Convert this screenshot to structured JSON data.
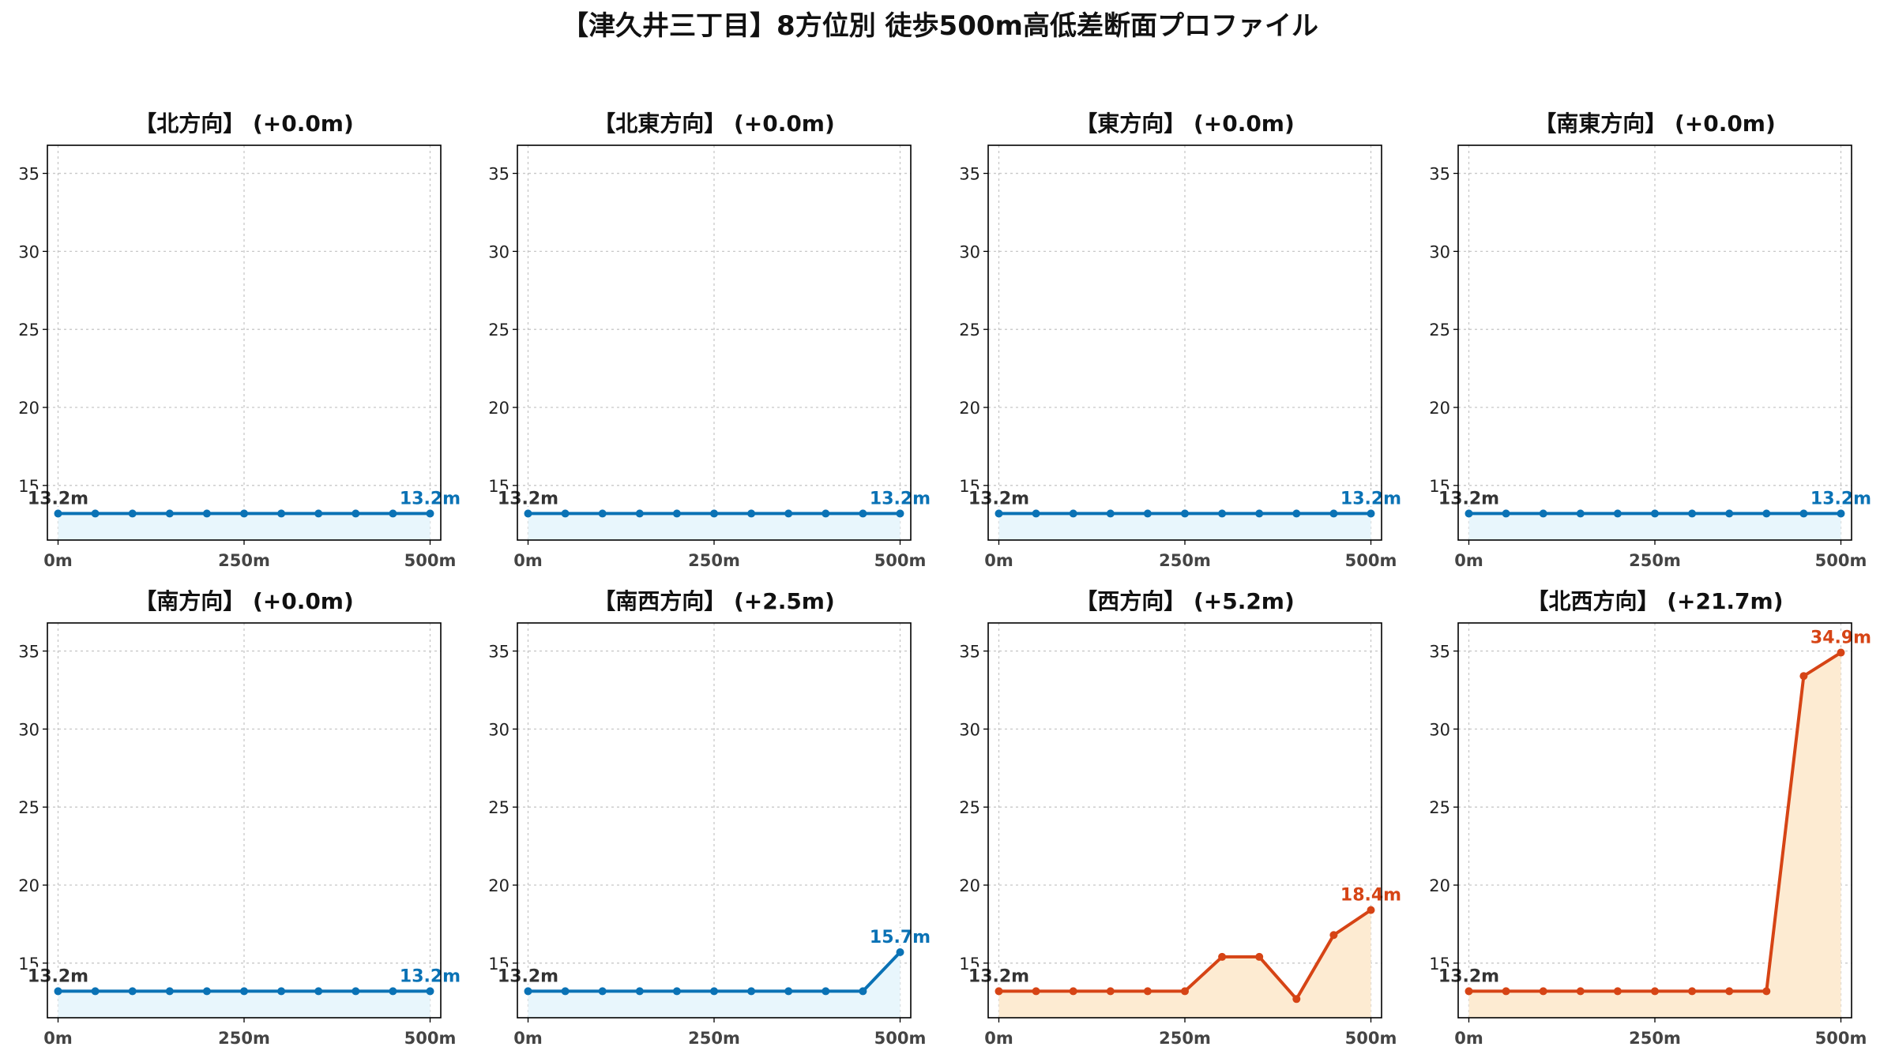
{
  "title": "【津久井三丁目】8方位別 徒歩500m高低差断面プロファイル",
  "colors": {
    "flat_line": "#0a72b5",
    "flat_fill": "#e8f6fc",
    "up_line": "#d64415",
    "up_fill": "#fdebd2"
  },
  "chart_data": [
    {
      "type": "area",
      "title": "【北方向】 (+0.0m)",
      "color_scheme": "flat",
      "x": [
        0,
        50,
        100,
        150,
        200,
        250,
        300,
        350,
        400,
        450,
        500
      ],
      "y": [
        13.2,
        13.2,
        13.2,
        13.2,
        13.2,
        13.2,
        13.2,
        13.2,
        13.2,
        13.2,
        13.2
      ],
      "start_label": "13.2m",
      "end_label": "13.2m",
      "ylim": [
        11.5,
        36.8
      ],
      "yticks": [
        "15",
        "20",
        "25",
        "30",
        "35"
      ],
      "xticks": [
        "0m",
        "250m",
        "500m"
      ],
      "grid": true
    },
    {
      "type": "area",
      "title": "【北東方向】 (+0.0m)",
      "color_scheme": "flat",
      "x": [
        0,
        50,
        100,
        150,
        200,
        250,
        300,
        350,
        400,
        450,
        500
      ],
      "y": [
        13.2,
        13.2,
        13.2,
        13.2,
        13.2,
        13.2,
        13.2,
        13.2,
        13.2,
        13.2,
        13.2
      ],
      "start_label": "13.2m",
      "end_label": "13.2m",
      "ylim": [
        11.5,
        36.8
      ],
      "yticks": [
        "15",
        "20",
        "25",
        "30",
        "35"
      ],
      "xticks": [
        "0m",
        "250m",
        "500m"
      ],
      "grid": true
    },
    {
      "type": "area",
      "title": "【東方向】 (+0.0m)",
      "color_scheme": "flat",
      "x": [
        0,
        50,
        100,
        150,
        200,
        250,
        300,
        350,
        400,
        450,
        500
      ],
      "y": [
        13.2,
        13.2,
        13.2,
        13.2,
        13.2,
        13.2,
        13.2,
        13.2,
        13.2,
        13.2,
        13.2
      ],
      "start_label": "13.2m",
      "end_label": "13.2m",
      "ylim": [
        11.5,
        36.8
      ],
      "yticks": [
        "15",
        "20",
        "25",
        "30",
        "35"
      ],
      "xticks": [
        "0m",
        "250m",
        "500m"
      ],
      "grid": true
    },
    {
      "type": "area",
      "title": "【南東方向】 (+0.0m)",
      "color_scheme": "flat",
      "x": [
        0,
        50,
        100,
        150,
        200,
        250,
        300,
        350,
        400,
        450,
        500
      ],
      "y": [
        13.2,
        13.2,
        13.2,
        13.2,
        13.2,
        13.2,
        13.2,
        13.2,
        13.2,
        13.2,
        13.2
      ],
      "start_label": "13.2m",
      "end_label": "13.2m",
      "ylim": [
        11.5,
        36.8
      ],
      "yticks": [
        "15",
        "20",
        "25",
        "30",
        "35"
      ],
      "xticks": [
        "0m",
        "250m",
        "500m"
      ],
      "grid": true
    },
    {
      "type": "area",
      "title": "【南方向】 (+0.0m)",
      "color_scheme": "flat",
      "x": [
        0,
        50,
        100,
        150,
        200,
        250,
        300,
        350,
        400,
        450,
        500
      ],
      "y": [
        13.2,
        13.2,
        13.2,
        13.2,
        13.2,
        13.2,
        13.2,
        13.2,
        13.2,
        13.2,
        13.2
      ],
      "start_label": "13.2m",
      "end_label": "13.2m",
      "ylim": [
        11.5,
        36.8
      ],
      "yticks": [
        "15",
        "20",
        "25",
        "30",
        "35"
      ],
      "xticks": [
        "0m",
        "250m",
        "500m"
      ],
      "grid": true
    },
    {
      "type": "area",
      "title": "【南西方向】 (+2.5m)",
      "color_scheme": "flat",
      "x": [
        0,
        50,
        100,
        150,
        200,
        250,
        300,
        350,
        400,
        450,
        500
      ],
      "y": [
        13.2,
        13.2,
        13.2,
        13.2,
        13.2,
        13.2,
        13.2,
        13.2,
        13.2,
        13.2,
        15.7
      ],
      "start_label": "13.2m",
      "end_label": "15.7m",
      "ylim": [
        11.5,
        36.8
      ],
      "yticks": [
        "15",
        "20",
        "25",
        "30",
        "35"
      ],
      "xticks": [
        "0m",
        "250m",
        "500m"
      ],
      "grid": true
    },
    {
      "type": "area",
      "title": "【西方向】 (+5.2m)",
      "color_scheme": "up",
      "x": [
        0,
        50,
        100,
        150,
        200,
        250,
        300,
        350,
        400,
        450,
        500
      ],
      "y": [
        13.2,
        13.2,
        13.2,
        13.2,
        13.2,
        13.2,
        15.4,
        15.4,
        12.7,
        16.8,
        18.4
      ],
      "start_label": "13.2m",
      "end_label": "18.4m",
      "ylim": [
        11.5,
        36.8
      ],
      "yticks": [
        "15",
        "20",
        "25",
        "30",
        "35"
      ],
      "xticks": [
        "0m",
        "250m",
        "500m"
      ],
      "grid": true
    },
    {
      "type": "area",
      "title": "【北西方向】 (+21.7m)",
      "color_scheme": "up",
      "x": [
        0,
        50,
        100,
        150,
        200,
        250,
        300,
        350,
        400,
        450,
        500
      ],
      "y": [
        13.2,
        13.2,
        13.2,
        13.2,
        13.2,
        13.2,
        13.2,
        13.2,
        13.2,
        33.4,
        34.9
      ],
      "start_label": "13.2m",
      "end_label": "34.9m",
      "ylim": [
        11.5,
        36.8
      ],
      "yticks": [
        "15",
        "20",
        "25",
        "30",
        "35"
      ],
      "xticks": [
        "0m",
        "250m",
        "500m"
      ],
      "grid": true
    }
  ]
}
